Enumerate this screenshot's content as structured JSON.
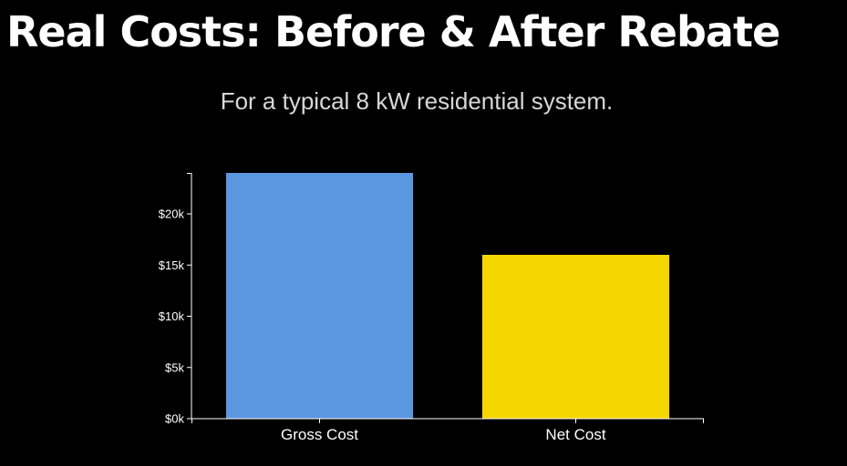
{
  "title": "Real Costs: Before & After Rebate",
  "subtitle": "For a typical 8 kW residential system.",
  "chart_data": {
    "type": "bar",
    "categories": [
      "Gross Cost",
      "Net Cost"
    ],
    "values": [
      24000,
      16000
    ],
    "colors": [
      "#5b96e0",
      "#f5d600"
    ],
    "title": "Real Costs: Before & After Rebate",
    "subtitle": "For a typical 8 kW residential system.",
    "xlabel": "",
    "ylabel": "",
    "ylim": [
      0,
      24000
    ],
    "yticks": [
      0,
      5000,
      10000,
      15000,
      20000
    ],
    "ytick_labels": [
      "$0k",
      "$5k",
      "$10k",
      "$15k",
      "$20k"
    ],
    "grid": false,
    "legend": "none"
  }
}
